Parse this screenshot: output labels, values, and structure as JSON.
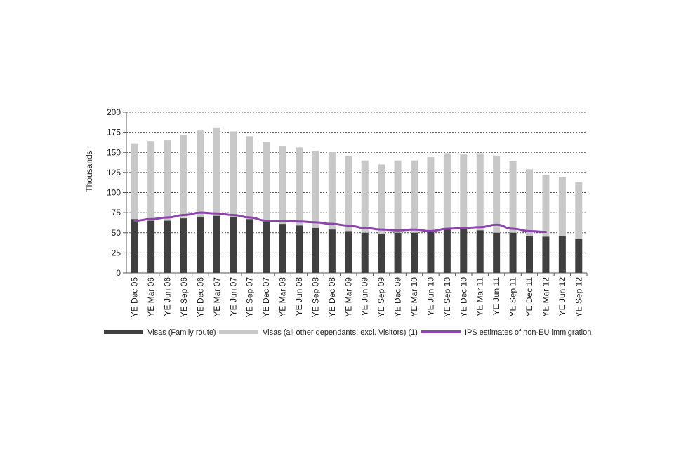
{
  "chart_data": {
    "type": "bar",
    "stacked": true,
    "ylabel": "Thousands",
    "ylim": [
      0,
      200
    ],
    "yticks": [
      0,
      25,
      50,
      75,
      100,
      125,
      150,
      175,
      200
    ],
    "grid": true,
    "legend_position": "bottom",
    "categories": [
      "YE Dec 05",
      "YE Mar 06",
      "YE Jun 06",
      "YE Sep 06",
      "YE Dec 06",
      "YE Mar 07",
      "YE Jun 07",
      "YE Sep 07",
      "YE Dec 07",
      "YE Mar 08",
      "YE Jun 08",
      "YE Sep 08",
      "YE Dec 08",
      "YE Mar 09",
      "YE Jun 09",
      "YE Sep 09",
      "YE Dec 09",
      "YE Mar 10",
      "YE Jun 10",
      "YE Sep 10",
      "YE Dec 10",
      "YE Mar 11",
      "YE Jun 11",
      "YE Sep 11",
      "YE Dec 11",
      "YE Mar 12",
      "YE Jun 12",
      "YE Sep 12"
    ],
    "series": [
      {
        "name": "Visas (Family route)",
        "kind": "bar",
        "color": "#404040",
        "values": [
          67,
          65,
          65,
          68,
          70,
          71,
          70,
          67,
          63,
          61,
          59,
          56,
          54,
          52,
          50,
          48,
          50,
          50,
          51,
          54,
          55,
          53,
          50,
          50,
          46,
          45,
          46,
          42
        ]
      },
      {
        "name": "Visas (all other dependants; excl. Visitors) (1)",
        "kind": "bar",
        "color": "#c8c8c8",
        "values": [
          94,
          99,
          100,
          104,
          107,
          110,
          106,
          103,
          100,
          97,
          97,
          96,
          97,
          93,
          90,
          87,
          90,
          90,
          93,
          95,
          93,
          96,
          96,
          89,
          83,
          77,
          73,
          71
        ]
      },
      {
        "name": "IPS estimates of non-EU immigration",
        "kind": "line",
        "color": "#8e44ad",
        "values": [
          65,
          67,
          69,
          72,
          75,
          74,
          72,
          69,
          65,
          65,
          64,
          63,
          61,
          59,
          56,
          54,
          53,
          54,
          52,
          55,
          56,
          57,
          60,
          55,
          52,
          51,
          null,
          null
        ]
      }
    ]
  }
}
